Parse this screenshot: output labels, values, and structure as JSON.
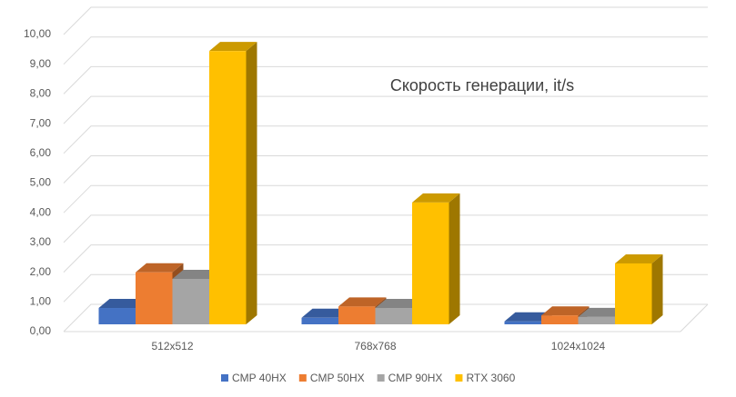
{
  "chart_data": {
    "type": "bar3d",
    "title": "Скорость генерации, it/s",
    "categories": [
      "512x512",
      "768x768",
      "1024x1024"
    ],
    "series": [
      {
        "name": "CMP 40HX",
        "color": "#4472c4",
        "values": [
          0.55,
          0.22,
          0.1
        ]
      },
      {
        "name": "CMP 50HX",
        "color": "#ed7d31",
        "values": [
          1.75,
          0.6,
          0.3
        ]
      },
      {
        "name": "CMP 90HX",
        "color": "#a5a5a5",
        "values": [
          1.53,
          0.55,
          0.25
        ]
      },
      {
        "name": "RTX 3060",
        "color": "#ffc000",
        "values": [
          9.2,
          4.1,
          2.05
        ]
      }
    ],
    "ylim": [
      0,
      10
    ],
    "yticks": [
      {
        "value": 0,
        "label": "0,00"
      },
      {
        "value": 1,
        "label": "1,00"
      },
      {
        "value": 2,
        "label": "2,00"
      },
      {
        "value": 3,
        "label": "3,00"
      },
      {
        "value": 4,
        "label": "4,00"
      },
      {
        "value": 5,
        "label": "5,00"
      },
      {
        "value": 6,
        "label": "6,00"
      },
      {
        "value": 7,
        "label": "7,00"
      },
      {
        "value": 8,
        "label": "8,00"
      },
      {
        "value": 9,
        "label": "9,00"
      },
      {
        "value": 10,
        "label": "10,00"
      }
    ],
    "grid": true,
    "legend": "bottom"
  }
}
